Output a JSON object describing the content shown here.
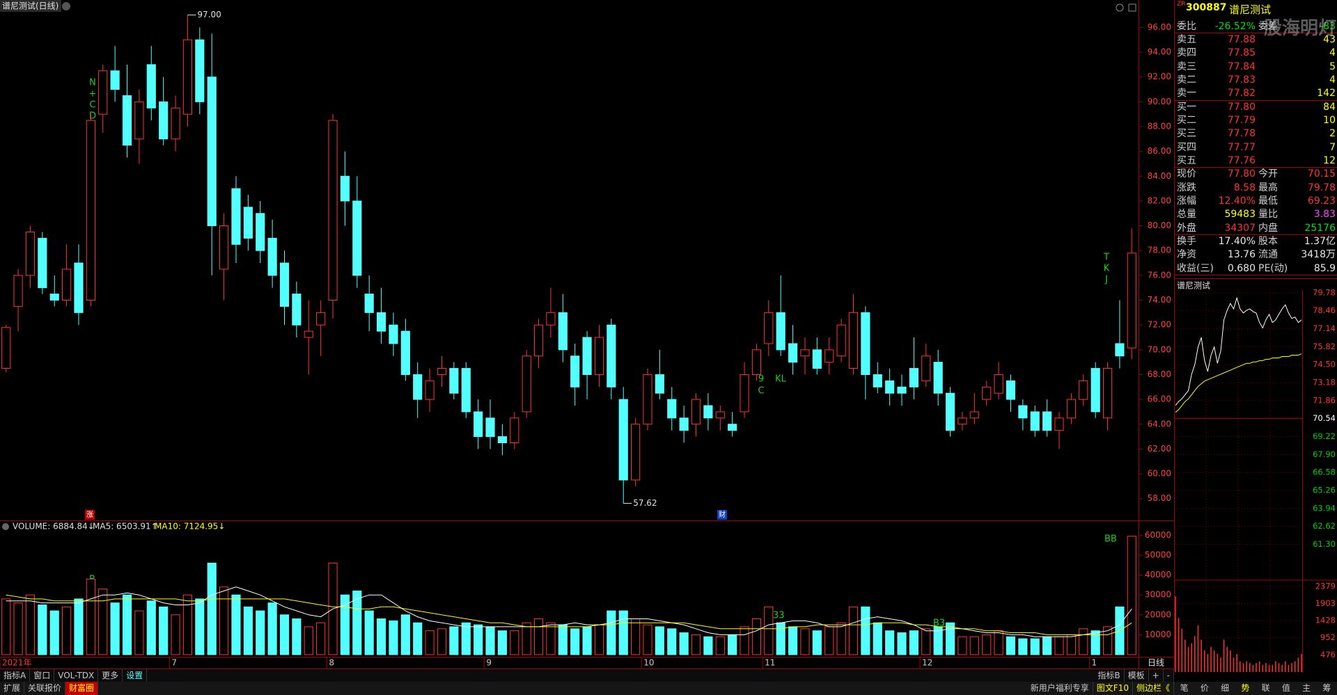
{
  "header": {
    "title": "谱尼测试(日线)"
  },
  "chart_data": [
    {
      "type": "candlestick",
      "categories": [
        "2021年",
        null,
        null,
        null,
        null,
        null,
        null,
        null,
        null,
        null,
        null,
        null,
        null,
        null,
        "7",
        null,
        null,
        null,
        null,
        null,
        null,
        null,
        null,
        null,
        null,
        null,
        null,
        "8",
        null,
        null,
        null,
        null,
        null,
        null,
        null,
        null,
        null,
        null,
        null,
        null,
        "9",
        null,
        null,
        null,
        null,
        null,
        null,
        null,
        null,
        null,
        null,
        null,
        null,
        "10",
        null,
        null,
        null,
        null,
        null,
        null,
        null,
        null,
        null,
        "11",
        null,
        null,
        null,
        null,
        null,
        null,
        null,
        null,
        null,
        null,
        null,
        null,
        "12",
        null,
        null,
        null,
        null,
        null,
        null,
        null,
        null,
        null,
        null,
        null,
        null,
        null,
        "1",
        null,
        null,
        null
      ],
      "open": [
        68.5,
        73.5,
        76,
        79,
        74.5,
        74,
        77,
        74,
        89,
        92.5,
        90.5,
        87,
        93,
        90,
        87,
        89,
        95,
        92,
        76.5,
        83,
        81.5,
        81,
        79,
        77,
        74.5,
        71,
        72,
        74,
        84,
        82,
        74.5,
        73,
        72,
        71.5,
        68,
        66,
        68,
        68.5,
        68.5,
        65,
        64.5,
        63,
        62.5,
        65,
        69.5,
        72,
        73,
        69.5,
        71,
        68,
        72,
        66,
        59.5,
        64,
        68,
        66,
        64.5,
        64,
        65.5,
        64.5,
        64,
        65,
        68,
        70.5,
        73,
        70.5,
        69.5,
        70,
        69,
        69.5,
        68.5,
        73,
        68,
        67.5,
        67,
        68.5,
        67.5,
        69,
        66.5,
        64,
        64.5,
        66,
        66.5,
        67.5,
        65.5,
        65,
        65,
        63.5,
        64.5,
        66,
        68.5,
        64.5,
        70.5,
        70.15
      ],
      "high": [
        72,
        76.5,
        80,
        79.5,
        76,
        78.5,
        78.5,
        89,
        93,
        94.5,
        93,
        91,
        94.5,
        92,
        90.5,
        97,
        96,
        95.5,
        81,
        84,
        82.5,
        82,
        80.5,
        78,
        75.5,
        74,
        74,
        89,
        86,
        84,
        76,
        75,
        73,
        72.5,
        69,
        68.5,
        69.5,
        69,
        69,
        66,
        66,
        64,
        65,
        70,
        72.5,
        75,
        74.5,
        70.5,
        71.5,
        72,
        72.5,
        67,
        64.5,
        68.5,
        70,
        67,
        65.5,
        66.5,
        66.5,
        65.5,
        65,
        69,
        70.5,
        74,
        76,
        72,
        71,
        71,
        71,
        72.5,
        74.5,
        73.5,
        69,
        68.5,
        68,
        71,
        70.5,
        70,
        67,
        65,
        66.5,
        67.5,
        69,
        68,
        66,
        65.5,
        66,
        65,
        66.5,
        68,
        69,
        69,
        74,
        79.78
      ],
      "low": [
        68.2,
        71.5,
        75,
        74.5,
        73.5,
        73.5,
        72,
        73.5,
        87.5,
        90,
        85.5,
        85,
        88.5,
        86.5,
        86,
        88,
        89,
        76,
        74,
        77,
        78,
        77,
        75,
        72,
        71,
        68,
        69.5,
        72.5,
        80,
        75,
        71.5,
        70.5,
        69.5,
        67.5,
        64.5,
        65,
        67,
        66,
        64.5,
        62,
        62,
        61.5,
        62,
        64.5,
        68.5,
        71,
        69,
        65.5,
        66,
        67,
        66,
        57.62,
        59,
        63.5,
        66,
        63.5,
        62.5,
        63,
        63.5,
        63.5,
        63,
        64.5,
        67.5,
        69.5,
        69.5,
        68,
        68,
        68,
        68,
        69,
        68,
        66,
        66.5,
        65.5,
        65.5,
        66,
        67,
        65.5,
        63,
        63.5,
        64,
        65.5,
        66,
        65,
        63.5,
        63,
        63,
        62,
        64,
        65.5,
        64.5,
        63.5,
        68.5,
        69.23
      ],
      "close": [
        71.8,
        76,
        79.5,
        75,
        74,
        76.5,
        73,
        88.5,
        92.5,
        91,
        86.5,
        90,
        89.5,
        87,
        89.5,
        95,
        90,
        80,
        80,
        78.5,
        79,
        78,
        76,
        73.5,
        72,
        71.5,
        73,
        88.5,
        82,
        76,
        73,
        71.5,
        70.5,
        68,
        66,
        67.5,
        68.5,
        66.5,
        65,
        63,
        63,
        62.5,
        64.5,
        69.5,
        72,
        73,
        70,
        67,
        68,
        71,
        67,
        59.5,
        64,
        68,
        66.5,
        64.5,
        63.5,
        66,
        64.5,
        65,
        63.5,
        68,
        70,
        73,
        70,
        69,
        70,
        68.5,
        70,
        72,
        73,
        68,
        67,
        66.5,
        66.5,
        67,
        69.5,
        66.5,
        63.5,
        64.5,
        65,
        67,
        68,
        66,
        64.5,
        63.5,
        63.5,
        64.5,
        66,
        67.5,
        65,
        68.5,
        69.5,
        77.8
      ],
      "up_color": "#ff3232",
      "down_color": "#54ffff",
      "ylim": [
        56.3,
        97.2
      ],
      "yticks": [
        {
          "value": 58,
          "label": "58.00"
        },
        {
          "value": 60,
          "label": "60.00"
        },
        {
          "value": 62,
          "label": "62.00"
        },
        {
          "value": 64,
          "label": "64.00"
        },
        {
          "value": 66,
          "label": "66.00"
        },
        {
          "value": 68,
          "label": "68.00"
        },
        {
          "value": 70,
          "label": "70.00"
        },
        {
          "value": 72,
          "label": "72.00"
        },
        {
          "value": 74,
          "label": "74.00"
        },
        {
          "value": 76,
          "label": "76.00"
        },
        {
          "value": 78,
          "label": "78.00"
        },
        {
          "value": 80,
          "label": "80.00"
        },
        {
          "value": 82,
          "label": "82.00"
        },
        {
          "value": 84,
          "label": "84.00"
        },
        {
          "value": 86,
          "label": "86.00"
        },
        {
          "value": 88,
          "label": "88.00"
        },
        {
          "value": 90,
          "label": "90.00"
        },
        {
          "value": 92,
          "label": "92.00"
        },
        {
          "value": 94,
          "label": "94.00"
        },
        {
          "value": 96,
          "label": "96.00"
        }
      ],
      "annotations": {
        "high_label": "97.00",
        "low_label": "57.62",
        "signals_left": [
          "N",
          "+",
          "C",
          "D"
        ],
        "signals_right": [
          "T",
          "K",
          "J"
        ],
        "signal_9": "9",
        "signal_c": "C",
        "signal_kl": "KL",
        "marker_up": "涨",
        "marker_finance": "财"
      }
    },
    {
      "type": "bar",
      "header": [
        "VOLUME: 6884.84↓",
        "MA5: 6503.91↑",
        "MA10: 7124.95↓"
      ],
      "values": [
        28000,
        26000,
        30000,
        25000,
        22000,
        24000,
        28000,
        38000,
        33000,
        26000,
        30000,
        22000,
        27000,
        24000,
        20000,
        30000,
        28000,
        46000,
        34000,
        30000,
        24000,
        22000,
        26000,
        20000,
        18000,
        14000,
        16000,
        46000,
        30000,
        32000,
        22000,
        18000,
        17000,
        20000,
        16000,
        12000,
        13000,
        14000,
        16000,
        15000,
        14000,
        12000,
        12000,
        16000,
        18000,
        16000,
        15000,
        13000,
        14000,
        15000,
        22000,
        22000,
        18000,
        15000,
        14000,
        13000,
        11000,
        10000,
        9000,
        9000,
        10000,
        14000,
        18000,
        24000,
        16000,
        14000,
        13000,
        12000,
        14000,
        16000,
        24000,
        24000,
        16000,
        12000,
        11000,
        12000,
        13000,
        14000,
        16000,
        9000,
        9000,
        10000,
        12000,
        9000,
        8000,
        8000,
        9000,
        9000,
        10000,
        13000,
        12000,
        14000,
        24000,
        59483
      ],
      "lines": [
        {
          "color": "#ffffff",
          "values": [
            27000,
            27000,
            27000,
            26000,
            26000,
            26000,
            26000,
            28000,
            30000,
            30000,
            31000,
            30000,
            28000,
            26000,
            25000,
            25000,
            26000,
            30000,
            32000,
            34000,
            32000,
            30000,
            27000,
            24000,
            22000,
            20000,
            19000,
            23000,
            25000,
            28000,
            30000,
            30000,
            26000,
            22000,
            19000,
            17000,
            16000,
            15000,
            14000,
            14000,
            14000,
            14000,
            14000,
            14000,
            14000,
            15000,
            15000,
            16000,
            15000,
            15000,
            16000,
            18000,
            18000,
            18000,
            17000,
            16000,
            15000,
            13000,
            11000,
            10000,
            10000,
            10000,
            12000,
            15000,
            16000,
            17000,
            17000,
            16000,
            14000,
            14000,
            16000,
            18000,
            19000,
            18000,
            17000,
            15000,
            12000,
            12000,
            13000,
            13000,
            12000,
            11000,
            11000,
            10000,
            10000,
            9000,
            9000,
            9000,
            9000,
            10000,
            11000,
            12000,
            15000,
            23000
          ]
        },
        {
          "color": "#ffff00",
          "values": [
            30000,
            29000,
            28000,
            28000,
            27000,
            27000,
            27000,
            27000,
            27000,
            28000,
            28000,
            28000,
            28000,
            28000,
            28000,
            27000,
            27000,
            28000,
            28000,
            28000,
            28000,
            28000,
            28000,
            28000,
            27000,
            26000,
            25000,
            24000,
            24000,
            23000,
            23000,
            24000,
            24000,
            23000,
            22000,
            21000,
            20000,
            19000,
            18000,
            17000,
            16000,
            16000,
            15000,
            14000,
            14000,
            14000,
            14000,
            14000,
            14000,
            15000,
            15000,
            16000,
            16000,
            16000,
            16000,
            16000,
            16000,
            15000,
            14000,
            13000,
            13000,
            13000,
            13000,
            13000,
            13000,
            14000,
            14000,
            15000,
            15000,
            15000,
            15000,
            15000,
            16000,
            16000,
            16000,
            15000,
            15000,
            14000,
            14000,
            13000,
            13000,
            12000,
            12000,
            11000,
            11000,
            11000,
            10000,
            10000,
            10000,
            10000,
            10000,
            10000,
            12000,
            16000
          ]
        }
      ],
      "ylim": [
        0,
        65000
      ],
      "yticks": [
        10000,
        20000,
        30000,
        40000,
        50000,
        60000
      ],
      "annotations": {
        "b_left": "B",
        "bb_right": "BB",
        "nov": "33",
        "dec_b": "B3",
        "dec_3": "3"
      }
    },
    {
      "type": "line",
      "title": "谱尼测试",
      "price": [
        71.5,
        71.8,
        72.0,
        72.3,
        72.6,
        73.8,
        74.5,
        75.8,
        76.5,
        74.8,
        74.0,
        75.2,
        75.8,
        74.6,
        75.5,
        77.8,
        78.5,
        79.0,
        78.6,
        79.4,
        78.6,
        78.3,
        78.5,
        78.6,
        78.4,
        78.3,
        77.6,
        77.2,
        77.8,
        78.2,
        77.6,
        77.8,
        78.2,
        78.6,
        78.9,
        78.3,
        77.9,
        78.0,
        77.6,
        77.8
      ],
      "average": [
        71.0,
        71.2,
        71.5,
        71.8,
        72.0,
        72.3,
        72.6,
        72.9,
        73.1,
        73.3,
        73.4,
        73.5,
        73.6,
        73.7,
        73.8,
        73.9,
        74.0,
        74.1,
        74.2,
        74.3,
        74.4,
        74.5,
        74.6,
        74.6,
        74.7,
        74.7,
        74.8,
        74.8,
        74.9,
        74.9,
        75.0,
        75.0,
        75.0,
        75.1,
        75.1,
        75.1,
        75.2,
        75.2,
        75.2,
        75.3
      ],
      "volume": [
        2100,
        1500,
        1200,
        900,
        700,
        800,
        1000,
        1300,
        900,
        600,
        500,
        700,
        600,
        500,
        400,
        900,
        700,
        600,
        400,
        500,
        300,
        250,
        300,
        250,
        200,
        250,
        300,
        200,
        250,
        200,
        200,
        300,
        250,
        200,
        300,
        200,
        250,
        300,
        400,
        500
      ],
      "price_color": "#ffffff",
      "average_color": "#ffff00",
      "volume_color": "#ff3232",
      "ylim": [
        58.67,
        79.98
      ],
      "yticks": [
        {
          "value": 79.78,
          "label": "79.78"
        },
        {
          "value": 78.46,
          "label": "78.46"
        },
        {
          "value": 77.14,
          "label": "77.14"
        },
        {
          "value": 75.82,
          "label": "75.82"
        },
        {
          "value": 74.5,
          "label": "74.50"
        },
        {
          "value": 73.18,
          "label": "73.18"
        },
        {
          "value": 71.86,
          "label": "71.86"
        },
        {
          "value": 70.54,
          "label": "70.54"
        },
        {
          "value": 69.22,
          "label": "69.22"
        },
        {
          "value": 67.9,
          "label": "67.90"
        },
        {
          "value": 66.58,
          "label": "66.58"
        },
        {
          "value": 65.26,
          "label": "65.26"
        },
        {
          "value": 63.94,
          "label": "63.94"
        },
        {
          "value": 62.62,
          "label": "62.62"
        },
        {
          "value": 61.3,
          "label": "61.30"
        }
      ],
      "vol_ylim": [
        0,
        2550
      ],
      "vol_yticks": [
        2379,
        1903,
        1428,
        952,
        476
      ]
    }
  ],
  "quote": {
    "code_prefix": "ZR",
    "code": "300887",
    "name": "谱尼测试",
    "watermark": "股海明灯",
    "rows": [
      [
        "委比",
        "-26.52%",
        "委差",
        "-83"
      ],
      [
        "卖五",
        "77.88",
        "43"
      ],
      [
        "卖四",
        "77.85",
        "4"
      ],
      [
        "卖三",
        "77.84",
        "5"
      ],
      [
        "卖二",
        "77.83",
        "4"
      ],
      [
        "卖一",
        "77.82",
        "142"
      ],
      [
        "买一",
        "77.80",
        "84"
      ],
      [
        "买二",
        "77.79",
        "10"
      ],
      [
        "买三",
        "77.78",
        "2"
      ],
      [
        "买四",
        "77.77",
        "7"
      ],
      [
        "买五",
        "77.76",
        "12"
      ],
      [
        "现价",
        "77.80",
        "今开",
        "70.15"
      ],
      [
        "涨跌",
        "8.58",
        "最高",
        "79.78"
      ],
      [
        "涨幅",
        "12.40%",
        "最低",
        "69.23"
      ],
      [
        "总量",
        "59483",
        "量比",
        "3.83"
      ],
      [
        "外盘",
        "34307",
        "内盘",
        "25176"
      ],
      [
        "换手",
        "17.40%",
        "股本",
        "1.37亿"
      ],
      [
        "净资",
        "13.76",
        "流通",
        "3418万"
      ],
      [
        "收益(三)",
        "0.680",
        "PE(动)",
        "85.9"
      ]
    ]
  },
  "toolbar": {
    "left": [
      "指标A",
      "窗口",
      "VOL-TDX",
      "更多",
      "设置"
    ],
    "right": [
      "指标B",
      "模板",
      "+",
      "-"
    ],
    "period": "日线"
  },
  "footer": {
    "left": [
      "扩展",
      "关联报价",
      "财富圈"
    ],
    "right": [
      "新用户福利专享",
      "图文F10",
      "侧边栏《"
    ],
    "tabs": [
      "笔",
      "价",
      "细",
      "势",
      "联",
      "值",
      "主",
      "筹"
    ]
  }
}
